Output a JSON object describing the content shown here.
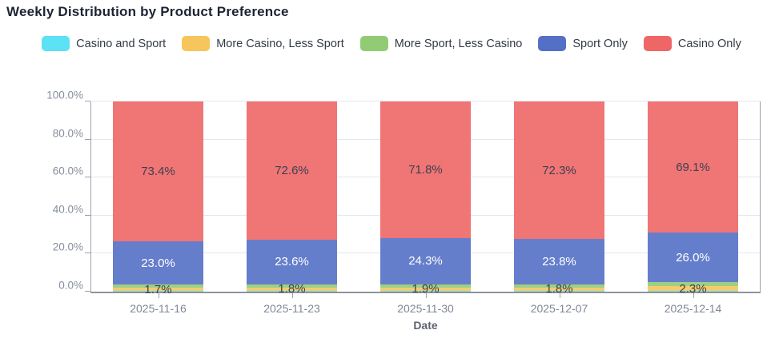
{
  "chart_data": {
    "type": "bar",
    "stacked": true,
    "percent_stack": true,
    "title": "Weekly Distribution by Product Preference",
    "xlabel": "Date",
    "ylabel": "",
    "ylim": [
      0,
      100
    ],
    "grid": true,
    "legend_position": "top",
    "ytick_values": [
      0,
      20,
      40,
      60,
      80,
      100
    ],
    "ytick_labels": [
      "0.0%",
      "20.0%",
      "40.0%",
      "60.0%",
      "80.0%",
      "100.0%"
    ],
    "categories": [
      "2025-11-16",
      "2025-11-23",
      "2025-11-30",
      "2025-12-07",
      "2025-12-14"
    ],
    "series": [
      {
        "name": "Casino and Sport",
        "color": "#5ce1f5",
        "values": [
          0.4,
          0.4,
          0.4,
          0.4,
          0.5
        ],
        "show_labels": false,
        "label_color": "#3c4150"
      },
      {
        "name": "More Casino, Less Sport",
        "color": "#f6c55c",
        "values": [
          1.7,
          1.8,
          1.9,
          1.8,
          2.3
        ],
        "show_labels": true,
        "label_color": "#3c4150"
      },
      {
        "name": "More Sport, Less Casino",
        "color": "#91cc75",
        "values": [
          1.5,
          1.6,
          1.6,
          1.7,
          2.1
        ],
        "show_labels": false,
        "label_color": "#3c4150"
      },
      {
        "name": "Sport Only",
        "color": "#5470c6",
        "values": [
          23.0,
          23.6,
          24.3,
          23.8,
          26.0
        ],
        "show_labels": true,
        "label_color": "#ffffff"
      },
      {
        "name": "Casino Only",
        "color": "#ee6666",
        "values": [
          73.4,
          72.6,
          71.8,
          72.3,
          69.1
        ],
        "show_labels": true,
        "label_color": "#3c4150"
      }
    ],
    "shown_bar_labels": {
      "Casino Only": [
        "73.4%",
        "72.6%",
        "71.8%",
        "72.3%",
        "69.1%"
      ],
      "Sport Only": [
        "23.0%",
        "23.6%",
        "24.3%",
        "23.8%",
        "26.0%"
      ],
      "More Casino, Less Sport": [
        "1.7%",
        "1.8%",
        "1.9%",
        "1.8%",
        "2.3%"
      ]
    }
  }
}
